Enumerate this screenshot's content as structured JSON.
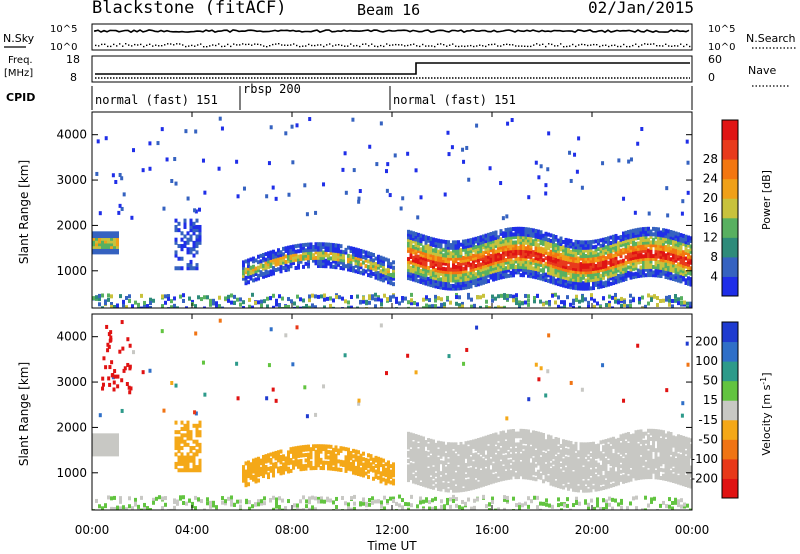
{
  "header": {
    "station": "Blackstone (fitACF)",
    "beam": "Beam 16",
    "date": "02/Jan/2015"
  },
  "panels": {
    "nsky": {
      "label": "N.Sky",
      "ticks": [
        "10^5",
        "10^0"
      ],
      "right_label": "N.Search",
      "right_ticks": [
        "10^5",
        "10^0"
      ]
    },
    "freq": {
      "label_line1": "Freq.",
      "label_line2": "[MHz]",
      "ticks": [
        "18",
        "8"
      ],
      "right_label": "Nave",
      "right_ticks": [
        "60",
        "0"
      ]
    },
    "cpid": {
      "label": "CPID",
      "segments": [
        {
          "label": "normal (fast) 151",
          "start_hour": 0
        },
        {
          "label": "rbsp 200",
          "start_hour": 6
        },
        {
          "label": "normal (fast) 151",
          "start_hour": 12
        }
      ]
    }
  },
  "chart_data": [
    {
      "type": "heatmap",
      "ylabel": "Slant Range [km]",
      "yticks": [
        "1000",
        "2000",
        "3000",
        "4000"
      ],
      "ylim": [
        180,
        4500
      ],
      "colorbar": {
        "label": "Power [dB]",
        "ticks": [
          "4",
          "8",
          "12",
          "16",
          "20",
          "24",
          "28"
        ],
        "colors": [
          "#1f2ee8",
          "#3562c0",
          "#2e8b7a",
          "#58b060",
          "#c8c23c",
          "#f0a018",
          "#f37610",
          "#e83a1c",
          "#e01414"
        ]
      }
    },
    {
      "type": "heatmap",
      "ylabel": "Slant Range [km]",
      "yticks": [
        "1000",
        "2000",
        "3000",
        "4000"
      ],
      "ylim": [
        180,
        4500
      ],
      "colorbar": {
        "label": "Velocity [m s^-1]",
        "ticks": [
          "200",
          "100",
          "50",
          "15",
          "-15",
          "-50",
          "-100",
          "-200"
        ],
        "colors": [
          "#1f3bd0",
          "#2f6fc8",
          "#2d9a8a",
          "#62c440",
          "#c8c8c4",
          "#f4a818",
          "#f07414",
          "#e83818",
          "#e01212"
        ]
      }
    }
  ],
  "xaxis": {
    "label": "Time UT",
    "ticks": [
      "00:00",
      "04:00",
      "08:00",
      "12:00",
      "16:00",
      "20:00",
      "00:00"
    ],
    "range_hours": [
      0,
      24
    ]
  }
}
